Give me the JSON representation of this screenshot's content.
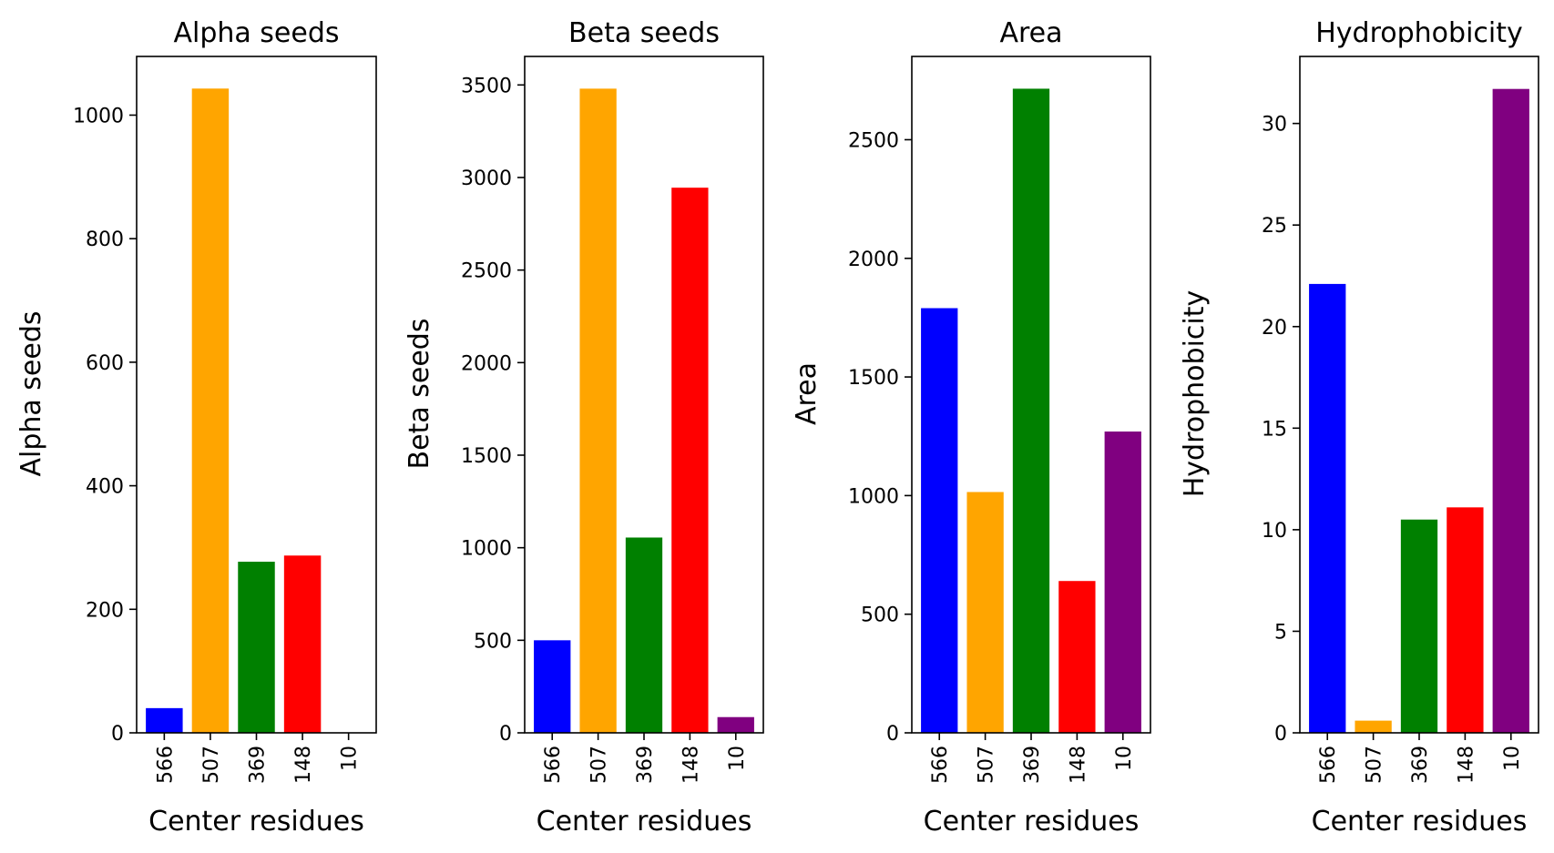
{
  "chart_data": [
    {
      "type": "bar",
      "title": "Alpha seeds",
      "xlabel": "Center residues",
      "ylabel": "Alpha seeds",
      "categories": [
        "566",
        "507",
        "369",
        "148",
        "10"
      ],
      "values": [
        40,
        1043,
        277,
        287,
        0
      ],
      "colors": [
        "#0000ff",
        "#ffa500",
        "#008000",
        "#ff0000",
        "#800080"
      ],
      "ylim": [
        0,
        1095
      ],
      "yticks": [
        0,
        200,
        400,
        600,
        800,
        1000
      ]
    },
    {
      "type": "bar",
      "title": "Beta seeds",
      "xlabel": "Center residues",
      "ylabel": "Beta seeds",
      "categories": [
        "566",
        "507",
        "369",
        "148",
        "10"
      ],
      "values": [
        500,
        3480,
        1055,
        2945,
        85
      ],
      "colors": [
        "#0000ff",
        "#ffa500",
        "#008000",
        "#ff0000",
        "#800080"
      ],
      "ylim": [
        0,
        3654
      ],
      "yticks": [
        0,
        500,
        1000,
        1500,
        2000,
        2500,
        3000,
        3500
      ]
    },
    {
      "type": "bar",
      "title": "Area",
      "xlabel": "Center residues",
      "ylabel": "Area",
      "categories": [
        "566",
        "507",
        "369",
        "148",
        "10"
      ],
      "values": [
        1790,
        1015,
        2715,
        640,
        1270
      ],
      "colors": [
        "#0000ff",
        "#ffa500",
        "#008000",
        "#ff0000",
        "#800080"
      ],
      "ylim": [
        0,
        2851
      ],
      "yticks": [
        0,
        500,
        1000,
        1500,
        2000,
        2500
      ]
    },
    {
      "type": "bar",
      "title": "Hydrophobicity",
      "xlabel": "Center residues",
      "ylabel": "Hydrophobicity",
      "categories": [
        "566",
        "507",
        "369",
        "148",
        "10"
      ],
      "values": [
        22.1,
        0.6,
        10.5,
        11.1,
        31.7
      ],
      "colors": [
        "#0000ff",
        "#ffa500",
        "#008000",
        "#ff0000",
        "#800080"
      ],
      "ylim": [
        0,
        33.3
      ],
      "yticks": [
        0,
        5,
        10,
        15,
        20,
        25,
        30
      ]
    }
  ]
}
